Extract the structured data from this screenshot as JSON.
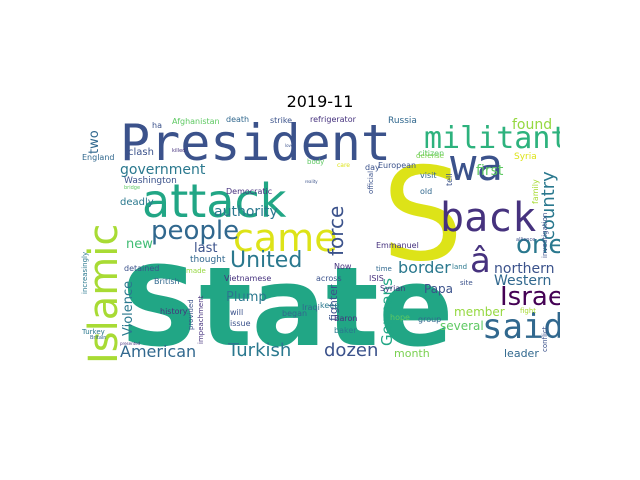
{
  "title": "2019-11",
  "colors": {
    "teal": "#21a685",
    "navy": "#3b528b",
    "yellow": "#dde318",
    "green": "#5ec962",
    "purple": "#46327e",
    "blue": "#31688e",
    "lime": "#95d840",
    "dark": "#440154"
  },
  "words": [
    {
      "text": "State",
      "color": "#21a685"
    },
    {
      "text": "S",
      "color": "#dde318"
    },
    {
      "text": "President",
      "color": "#3b528b"
    },
    {
      "text": "attack",
      "color": "#21a685"
    },
    {
      "text": "Islamic",
      "color": "#a8db34"
    },
    {
      "text": "wa",
      "color": "#3b528b"
    },
    {
      "text": "back",
      "color": "#46327e"
    },
    {
      "text": "militant",
      "color": "#2db27d"
    },
    {
      "text": "came",
      "color": "#dde318"
    },
    {
      "text": "said",
      "color": "#31688e"
    },
    {
      "text": "people",
      "color": "#31688e"
    },
    {
      "text": "United",
      "color": "#2a788e"
    },
    {
      "text": "Israel",
      "color": "#440154"
    },
    {
      "text": "one",
      "color": "#2a788e"
    },
    {
      "text": "â",
      "color": "#46327e"
    },
    {
      "text": "force",
      "color": "#3b528b"
    },
    {
      "text": "country",
      "color": "#2a788e"
    },
    {
      "text": "American",
      "color": "#31688e"
    },
    {
      "text": "Turkish",
      "color": "#2a788e"
    },
    {
      "text": "dozen",
      "color": "#3b528b"
    },
    {
      "text": "Germans",
      "color": "#21a685"
    },
    {
      "text": "border",
      "color": "#2a788e"
    },
    {
      "text": "northern",
      "color": "#3b528b"
    },
    {
      "text": "Western",
      "color": "#31688e"
    },
    {
      "text": "authority",
      "color": "#2a788e"
    },
    {
      "text": "government",
      "color": "#2a788e"
    },
    {
      "text": "found",
      "color": "#95d840"
    },
    {
      "text": "first",
      "color": "#5ec962"
    },
    {
      "text": "two",
      "color": "#31688e"
    },
    {
      "text": "new",
      "color": "#3fbc73"
    },
    {
      "text": "last",
      "color": "#3b528b"
    },
    {
      "text": "Plump",
      "color": "#2a788e"
    },
    {
      "text": "Papa",
      "color": "#3b528b"
    },
    {
      "text": "Violence",
      "color": "#2a788e"
    },
    {
      "text": "member",
      "color": "#95d840"
    },
    {
      "text": "several",
      "color": "#5ec962"
    },
    {
      "text": "month",
      "color": "#7ad151"
    },
    {
      "text": "leader",
      "color": "#31688e"
    },
    {
      "text": "fighter",
      "color": "#3b528b"
    },
    {
      "text": "Washington",
      "color": "#3b528b"
    },
    {
      "text": "Democratic",
      "color": "#46327e"
    },
    {
      "text": "clash",
      "color": "#3b528b"
    },
    {
      "text": "deadly",
      "color": "#2a788e"
    },
    {
      "text": "England",
      "color": "#31688e"
    },
    {
      "text": "Turkey",
      "color": "#2a788e"
    },
    {
      "text": "Afghanistan",
      "color": "#5ec962"
    },
    {
      "text": "death",
      "color": "#31688e"
    },
    {
      "text": "strike",
      "color": "#3b528b"
    },
    {
      "text": "refrigerator",
      "color": "#46327e"
    },
    {
      "text": "Russia",
      "color": "#31688e"
    },
    {
      "text": "European",
      "color": "#3b528b"
    },
    {
      "text": "citizen",
      "color": "#5ec962"
    },
    {
      "text": "defense",
      "color": "#7ad151"
    },
    {
      "text": "Syria",
      "color": "#dde318"
    },
    {
      "text": "tell",
      "color": "#3b528b"
    },
    {
      "text": "visit",
      "color": "#31688e"
    },
    {
      "text": "old",
      "color": "#31688e"
    },
    {
      "text": "family",
      "color": "#a8db34"
    },
    {
      "text": "investigation",
      "color": "#3b528b"
    },
    {
      "text": "ISIS",
      "color": "#46327e"
    },
    {
      "text": "across",
      "color": "#3b528b"
    },
    {
      "text": "Vietnamese",
      "color": "#46327e"
    },
    {
      "text": "Emmanuel",
      "color": "#46327e"
    },
    {
      "text": "Syrian",
      "color": "#46327e"
    },
    {
      "text": "Now",
      "color": "#46327e"
    },
    {
      "text": "time",
      "color": "#31688e"
    },
    {
      "text": "land",
      "color": "#2a788e"
    },
    {
      "text": "site",
      "color": "#3b528b"
    },
    {
      "text": "thought",
      "color": "#31688e"
    },
    {
      "text": "detained",
      "color": "#3b528b"
    },
    {
      "text": "increasingly",
      "color": "#2a788e"
    },
    {
      "text": "British",
      "color": "#31688e"
    },
    {
      "text": "made",
      "color": "#95d840"
    },
    {
      "text": "will",
      "color": "#3b528b"
    },
    {
      "text": "issue",
      "color": "#3b528b"
    },
    {
      "text": "Iraqi",
      "color": "#31688e"
    },
    {
      "text": "keep",
      "color": "#2a788e"
    },
    {
      "text": "Baron",
      "color": "#46327e"
    },
    {
      "text": "baker",
      "color": "#2a788e"
    },
    {
      "text": "hope",
      "color": "#5ec962"
    },
    {
      "text": "group",
      "color": "#31688e"
    },
    {
      "text": "fight",
      "color": "#a8db34"
    },
    {
      "text": "conflict",
      "color": "#3b528b"
    },
    {
      "text": "history",
      "color": "#46327e"
    },
    {
      "text": "provided",
      "color": "#3b528b"
    },
    {
      "text": "impeachment",
      "color": "#46327e"
    },
    {
      "text": "began",
      "color": "#31688e"
    },
    {
      "text": "official",
      "color": "#3b528b"
    },
    {
      "text": "day",
      "color": "#3b528b"
    },
    {
      "text": "body",
      "color": "#5ec962"
    },
    {
      "text": "ha",
      "color": "#3b528b"
    },
    {
      "text": "killed",
      "color": "#46327e"
    },
    {
      "text": "bridge",
      "color": "#5ec962"
    },
    {
      "text": "alliance",
      "color": "#3b528b"
    },
    {
      "text": "Britain",
      "color": "#31688e"
    },
    {
      "text": "presented",
      "color": "#46327e"
    },
    {
      "text": "care",
      "color": "#dde318"
    },
    {
      "text": "reality",
      "color": "#3b528b"
    },
    {
      "text": "love",
      "color": "#3b528b"
    }
  ]
}
